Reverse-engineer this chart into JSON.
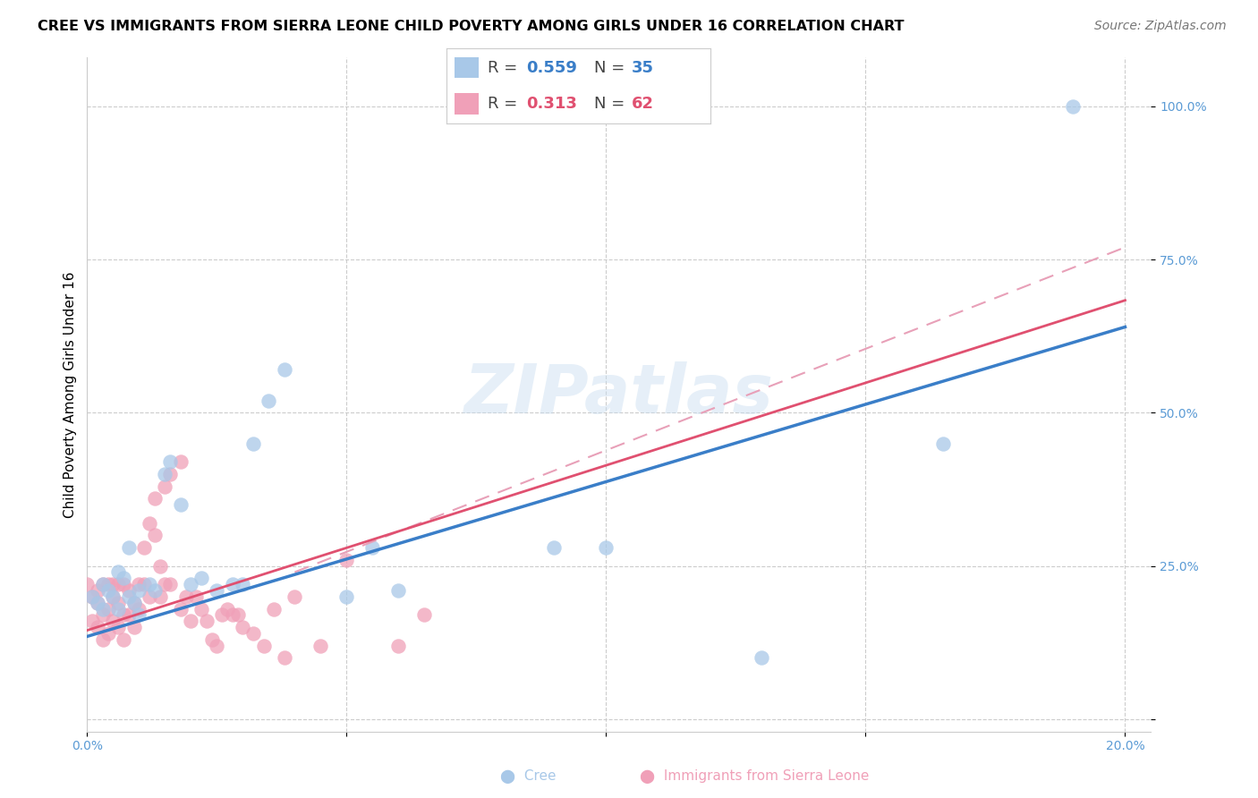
{
  "title": "CREE VS IMMIGRANTS FROM SIERRA LEONE CHILD POVERTY AMONG GIRLS UNDER 16 CORRELATION CHART",
  "source": "Source: ZipAtlas.com",
  "ylabel": "Child Poverty Among Girls Under 16",
  "xlim": [
    0.0,
    0.205
  ],
  "ylim": [
    -0.02,
    1.08
  ],
  "grid_color": "#cccccc",
  "background_color": "#ffffff",
  "watermark_text": "ZIPatlas",
  "cree_color": "#a8c8e8",
  "sierra_leone_color": "#f0a0b8",
  "cree_line_color": "#3a7ec8",
  "sierra_leone_line_color": "#e05070",
  "sierra_leone_dashed_color": "#e8a0b8",
  "cree_R": 0.559,
  "cree_N": 35,
  "sierra_leone_R": 0.313,
  "sierra_leone_N": 62,
  "cree_scatter_x": [
    0.001,
    0.002,
    0.003,
    0.003,
    0.004,
    0.005,
    0.006,
    0.006,
    0.007,
    0.008,
    0.008,
    0.009,
    0.01,
    0.01,
    0.012,
    0.013,
    0.015,
    0.016,
    0.018,
    0.02,
    0.022,
    0.025,
    0.028,
    0.03,
    0.032,
    0.035,
    0.038,
    0.05,
    0.055,
    0.06,
    0.09,
    0.1,
    0.13,
    0.165,
    0.19
  ],
  "cree_scatter_y": [
    0.2,
    0.19,
    0.18,
    0.22,
    0.21,
    0.2,
    0.24,
    0.18,
    0.23,
    0.28,
    0.2,
    0.19,
    0.21,
    0.17,
    0.22,
    0.21,
    0.4,
    0.42,
    0.35,
    0.22,
    0.23,
    0.21,
    0.22,
    0.22,
    0.45,
    0.52,
    0.57,
    0.2,
    0.28,
    0.21,
    0.28,
    0.28,
    0.1,
    0.45,
    1.0
  ],
  "sierra_leone_scatter_x": [
    0.0,
    0.001,
    0.001,
    0.002,
    0.002,
    0.002,
    0.003,
    0.003,
    0.003,
    0.004,
    0.004,
    0.004,
    0.005,
    0.005,
    0.005,
    0.006,
    0.006,
    0.006,
    0.007,
    0.007,
    0.007,
    0.008,
    0.008,
    0.009,
    0.009,
    0.01,
    0.01,
    0.011,
    0.011,
    0.012,
    0.012,
    0.013,
    0.013,
    0.014,
    0.014,
    0.015,
    0.015,
    0.016,
    0.016,
    0.018,
    0.018,
    0.019,
    0.02,
    0.021,
    0.022,
    0.023,
    0.024,
    0.025,
    0.026,
    0.027,
    0.028,
    0.029,
    0.03,
    0.032,
    0.034,
    0.036,
    0.038,
    0.04,
    0.045,
    0.05,
    0.06,
    0.065
  ],
  "sierra_leone_scatter_y": [
    0.22,
    0.2,
    0.16,
    0.19,
    0.15,
    0.21,
    0.17,
    0.13,
    0.22,
    0.18,
    0.14,
    0.22,
    0.2,
    0.16,
    0.22,
    0.19,
    0.15,
    0.22,
    0.17,
    0.13,
    0.22,
    0.21,
    0.17,
    0.19,
    0.15,
    0.22,
    0.18,
    0.28,
    0.22,
    0.32,
    0.2,
    0.3,
    0.36,
    0.25,
    0.2,
    0.38,
    0.22,
    0.4,
    0.22,
    0.42,
    0.18,
    0.2,
    0.16,
    0.2,
    0.18,
    0.16,
    0.13,
    0.12,
    0.17,
    0.18,
    0.17,
    0.17,
    0.15,
    0.14,
    0.12,
    0.18,
    0.1,
    0.2,
    0.12,
    0.26,
    0.12,
    0.17
  ],
  "title_fontsize": 11.5,
  "ylabel_fontsize": 11,
  "tick_fontsize": 10,
  "legend_fontsize": 13,
  "source_fontsize": 10
}
